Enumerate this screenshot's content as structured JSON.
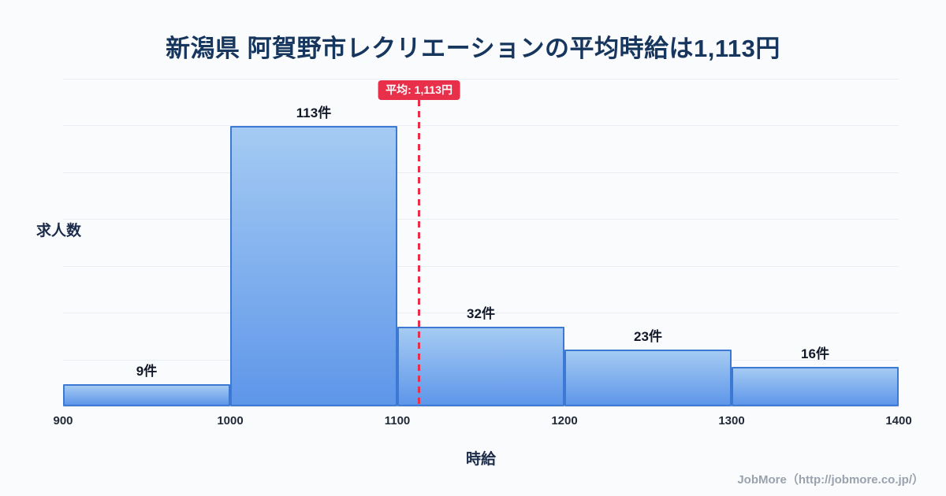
{
  "title": "新潟県 阿賀野市レクリエーションの平均時給は1,113円",
  "chart_data": {
    "type": "bar",
    "subtype": "histogram",
    "bins": [
      {
        "range": [
          900,
          1000
        ],
        "count": 9,
        "label": "9件"
      },
      {
        "range": [
          1000,
          1100
        ],
        "count": 113,
        "label": "113件"
      },
      {
        "range": [
          1100,
          1200
        ],
        "count": 32,
        "label": "32件"
      },
      {
        "range": [
          1200,
          1300
        ],
        "count": 23,
        "label": "23件"
      },
      {
        "range": [
          1300,
          1400
        ],
        "count": 16,
        "label": "16件"
      }
    ],
    "x_ticks": [
      "900",
      "1000",
      "1100",
      "1200",
      "1300",
      "1400"
    ],
    "x_min": 900,
    "x_max": 1400,
    "y_max": 132,
    "gridlines": 7,
    "xlabel": "時給",
    "ylabel": "求人数",
    "average": {
      "value": 1113,
      "label": "平均: 1,113円"
    },
    "legend": "none",
    "grid": "on",
    "colors": {
      "bar_top": "#a5cbf3",
      "bar_bottom": "#5e96e9",
      "bar_border": "#3b79d4",
      "average_line": "#e8304a",
      "grid": "#e9edf4",
      "title": "#17365d"
    }
  },
  "footer": "JobMore（http://jobmore.co.jp/）"
}
